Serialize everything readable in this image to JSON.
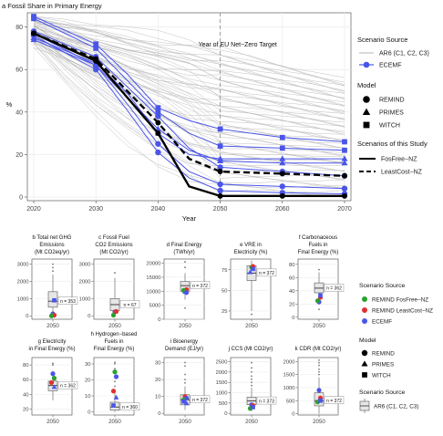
{
  "colors": {
    "ar6": "#b5b5b5",
    "ecemf": "#4a55e8",
    "remind_fosfree": "#2ca02c",
    "remind_leastcost": "#e03030",
    "black": "#000000",
    "panel_bg": "#ffffff",
    "grid": "#ebebeb"
  },
  "chart_data": [
    {
      "type": "line",
      "title": "a Fossil Share in Primary Energy",
      "xlabel": "Year",
      "ylabel": "%",
      "xlim": [
        2020,
        2070
      ],
      "ylim": [
        0,
        85
      ],
      "x_ticks": [
        2020,
        2030,
        2040,
        2050,
        2060,
        2070
      ],
      "y_ticks": [
        0,
        20,
        40,
        60,
        80
      ],
      "annotation": "Year of EU Net−Zero Target",
      "target_year": 2050,
      "grid": true,
      "legend_position": "right",
      "x": [
        2020,
        2030,
        2035,
        2040,
        2045,
        2050,
        2060,
        2070
      ],
      "series": [
        {
          "name": "FosFree−NZ",
          "model": "REMIND",
          "source": "study",
          "style": "solid",
          "values": [
            77,
            64,
            47,
            30,
            5,
            0.5,
            0.5,
            0.5
          ]
        },
        {
          "name": "LeastCost−NZ",
          "model": "REMIND",
          "source": "study",
          "style": "dashed",
          "values": [
            77,
            65,
            50,
            35,
            18,
            12,
            11,
            10
          ]
        },
        {
          "model": "REMIND",
          "source": "ECEMF",
          "values": [
            77,
            62,
            44,
            25,
            12,
            6,
            5,
            4
          ]
        },
        {
          "model": "REMIND",
          "source": "ECEMF",
          "values": [
            78,
            66,
            52,
            38,
            23,
            14,
            12,
            10
          ]
        },
        {
          "model": "REMIND",
          "source": "ECEMF",
          "values": [
            76,
            60,
            41,
            21,
            9,
            3,
            2,
            1.5
          ]
        },
        {
          "model": "PRIMES",
          "source": "ECEMF",
          "values": [
            74,
            62,
            47,
            32,
            22,
            17,
            16,
            16
          ]
        },
        {
          "model": "PRIMES",
          "source": "ECEMF",
          "values": [
            75,
            63,
            49,
            30,
            20,
            18,
            18,
            18
          ]
        },
        {
          "model": "WITCH",
          "source": "ECEMF",
          "values": [
            85,
            72,
            58,
            42,
            36,
            32,
            28,
            26
          ]
        },
        {
          "model": "WITCH",
          "source": "ECEMF",
          "values": [
            84,
            70,
            55,
            40,
            30,
            24,
            23,
            22
          ]
        }
      ],
      "ar6_envelope": {
        "source": "AR6 (C1, C2, C3)",
        "count": 58,
        "start": [
          72,
          85
        ],
        "end_2050": [
          3,
          70
        ],
        "end_2070": [
          1,
          55
        ]
      }
    },
    {
      "type": "box",
      "title_lines": [
        "b Total net GHG",
        "Emissions",
        "(Mt CO2eq/yr)"
      ],
      "xlabel": "2050",
      "y_ticks": [
        0,
        1000,
        2000,
        3000
      ],
      "ylim": [
        -200,
        3300
      ],
      "n_label": "n = 353",
      "box": {
        "min": 0,
        "q1": 500,
        "median": 850,
        "q3": 1400,
        "max": 2400
      },
      "outliers": [
        2600,
        2800,
        3000
      ],
      "points": [
        {
          "group": "ECEMF",
          "model": "REMIND",
          "value": 120
        },
        {
          "group": "REMIND LeastCost−NZ",
          "model": "REMIND",
          "value": 40
        },
        {
          "group": "REMIND FosFree−NZ",
          "model": "REMIND",
          "value": 0
        },
        {
          "group": "ECEMF",
          "model": "WITCH",
          "value": 900
        }
      ]
    },
    {
      "type": "box",
      "title_lines": [
        "c Fossil Fuel",
        "CO2 Emissions",
        "(Mt CO2/yr)"
      ],
      "xlabel": "2050",
      "y_ticks": [
        0,
        1000,
        2000,
        3000
      ],
      "ylim": [
        -200,
        3300
      ],
      "n_label": "n = 67",
      "box": {
        "min": 0,
        "q1": 300,
        "median": 650,
        "q3": 1000,
        "max": 2200
      },
      "outliers": [
        2500
      ],
      "points": [
        {
          "group": "ECEMF",
          "model": "REMIND",
          "value": 230
        },
        {
          "group": "REMIND LeastCost−NZ",
          "model": "REMIND",
          "value": 250
        },
        {
          "group": "REMIND FosFree−NZ",
          "model": "REMIND",
          "value": 40
        }
      ]
    },
    {
      "type": "box",
      "title_lines": [
        "d Final Energy",
        "(TWh/yr)"
      ],
      "xlabel": "2050",
      "y_ticks": [
        0,
        5000,
        10000,
        15000,
        20000
      ],
      "ylim": [
        0,
        21500
      ],
      "n_label": "n = 372",
      "box": {
        "min": 7000,
        "q1": 10000,
        "median": 12000,
        "q3": 13500,
        "max": 16500
      },
      "outliers": [
        18500,
        20500,
        4000
      ],
      "points": [
        {
          "group": "ECEMF",
          "model": "PRIMES",
          "value": 9800
        },
        {
          "group": "REMIND LeastCost−NZ",
          "model": "REMIND",
          "value": 10600
        },
        {
          "group": "REMIND FosFree−NZ",
          "model": "REMIND",
          "value": 10300
        },
        {
          "group": "ECEMF",
          "model": "REMIND",
          "value": 9500
        }
      ]
    },
    {
      "type": "box",
      "title_lines": [
        "e VRE in",
        "Electricity (%)"
      ],
      "xlabel": "2050",
      "y_ticks": [
        25,
        50,
        75
      ],
      "ylim": [
        15,
        88
      ],
      "n_label": "n = 372",
      "box": {
        "min": 25,
        "q1": 62,
        "median": 71,
        "q3": 80,
        "max": 86
      },
      "outliers": [
        21
      ],
      "points": [
        {
          "group": "REMIND FosFree−NZ",
          "model": "REMIND",
          "value": 78
        },
        {
          "group": "REMIND LeastCost−NZ",
          "model": "REMIND",
          "value": 79
        },
        {
          "group": "ECEMF",
          "model": "PRIMES",
          "value": 72
        },
        {
          "group": "ECEMF",
          "model": "WITCH",
          "value": 76
        }
      ]
    },
    {
      "type": "box",
      "title_lines": [
        "f Carbonaceous",
        "Fuels in",
        "Final Energy (%)"
      ],
      "xlabel": "2050",
      "y_ticks": [
        0,
        20,
        40,
        60,
        80
      ],
      "ylim": [
        -3,
        88
      ],
      "n_label": "n = 362",
      "box": {
        "min": 20,
        "q1": 37,
        "median": 44,
        "q3": 52,
        "max": 68
      },
      "outliers": [
        72,
        12
      ],
      "points": [
        {
          "group": "ECEMF",
          "model": "REMIND",
          "value": 23
        },
        {
          "group": "REMIND LeastCost−NZ",
          "model": "REMIND",
          "value": 30
        },
        {
          "group": "REMIND FosFree−NZ",
          "model": "REMIND",
          "value": 25
        },
        {
          "group": "ECEMF",
          "model": "WITCH",
          "value": 33
        }
      ]
    },
    {
      "type": "box",
      "title_lines": [
        "g Electricity",
        "in Final Energy (%)"
      ],
      "xlabel": "2050",
      "y_ticks": [
        20,
        40,
        60,
        80
      ],
      "ylim": [
        12,
        90
      ],
      "n_label": "n = 362",
      "box": {
        "min": 32,
        "q1": 45,
        "median": 52,
        "q3": 58,
        "max": 72
      },
      "outliers": [
        80,
        82
      ],
      "points": [
        {
          "group": "ECEMF",
          "model": "REMIND",
          "value": 68
        },
        {
          "group": "REMIND FosFree−NZ",
          "model": "REMIND",
          "value": 62
        },
        {
          "group": "REMIND LeastCost−NZ",
          "model": "REMIND",
          "value": 56
        },
        {
          "group": "ECEMF",
          "model": "PRIMES",
          "value": 50
        }
      ]
    },
    {
      "type": "box",
      "title_lines": [
        "h Hydrogen−based",
        "Fuels in",
        "Final Energy (%)"
      ],
      "xlabel": "2050",
      "y_ticks": [
        0,
        10,
        20,
        30
      ],
      "ylim": [
        -2,
        34
      ],
      "n_label": "n = 360",
      "box": {
        "min": 0,
        "q1": 1,
        "median": 3,
        "q3": 6,
        "max": 14
      },
      "outliers": [
        16,
        19,
        22,
        27,
        30,
        31
      ],
      "points": [
        {
          "group": "REMIND FosFree−NZ",
          "model": "REMIND",
          "value": 25
        },
        {
          "group": "ECEMF",
          "model": "REMIND",
          "value": 22
        },
        {
          "group": "REMIND LeastCost−NZ",
          "model": "REMIND",
          "value": 13
        },
        {
          "group": "ECEMF",
          "model": "PRIMES",
          "value": 9
        },
        {
          "group": "ECEMF",
          "model": "WITCH",
          "value": 4
        }
      ]
    },
    {
      "type": "box",
      "title_lines": [
        "i Bioenergy",
        "Demand (EJ/yr)"
      ],
      "xlabel": "2050",
      "y_ticks": [
        0,
        10,
        20,
        30
      ],
      "ylim": [
        -1,
        33
      ],
      "n_label": "n = 372",
      "box": {
        "min": 2,
        "q1": 5,
        "median": 8,
        "q3": 11,
        "max": 16
      },
      "outliers": [
        18,
        20,
        23,
        28,
        30
      ],
      "points": [
        {
          "group": "REMIND LeastCost−NZ",
          "model": "REMIND",
          "value": 10
        },
        {
          "group": "ECEMF",
          "model": "REMIND",
          "value": 9
        },
        {
          "group": "REMIND FosFree−NZ",
          "model": "REMIND",
          "value": 8
        },
        {
          "group": "ECEMF",
          "model": "PRIMES",
          "value": 6
        },
        {
          "group": "ECEMF",
          "model": "WITCH",
          "value": 7
        }
      ]
    },
    {
      "type": "box",
      "title_lines": [
        "j CCS (Mt CO2/yr)"
      ],
      "xlabel": "2050",
      "y_ticks": [
        0,
        500,
        1000,
        1500,
        2000,
        2500
      ],
      "ylim": [
        -80,
        2700
      ],
      "n_label": "n = 373",
      "box": {
        "min": 100,
        "q1": 420,
        "median": 600,
        "q3": 780,
        "max": 1250
      },
      "outliers": [
        1350,
        1500,
        1650,
        1800,
        2000,
        2200,
        2450
      ],
      "points": [
        {
          "group": "ECEMF",
          "model": "REMIND",
          "value": 420
        },
        {
          "group": "REMIND LeastCost−NZ",
          "model": "REMIND",
          "value": 380
        },
        {
          "group": "REMIND FosFree−NZ",
          "model": "REMIND",
          "value": 240
        },
        {
          "group": "ECEMF",
          "model": "WITCH",
          "value": 300
        }
      ]
    },
    {
      "type": "box",
      "title_lines": [
        "k CDR (Mt CO2/yr)"
      ],
      "xlabel": "2050",
      "y_ticks": [
        0,
        500,
        1000,
        1500,
        2000
      ],
      "ylim": [
        -50,
        2150
      ],
      "n_label": "n = 372",
      "box": {
        "min": 0,
        "q1": 300,
        "median": 500,
        "q3": 800,
        "max": 1400
      },
      "outliers": [
        1500,
        1600,
        1700,
        1850,
        1950,
        2050
      ],
      "points": [
        {
          "group": "ECEMF",
          "model": "REMIND",
          "value": 900
        },
        {
          "group": "REMIND LeastCost−NZ",
          "model": "REMIND",
          "value": 600
        },
        {
          "group": "REMIND FosFree−NZ",
          "model": "REMIND",
          "value": 450
        },
        {
          "group": "ECEMF",
          "model": "WITCH",
          "value": 500
        }
      ]
    }
  ],
  "legend_top": {
    "scenario_source_title": "Scenario Source",
    "ar6_label": "AR6 (C1, C2, C3)",
    "ecemf_label": "ECEMF",
    "model_title": "Model",
    "models": [
      "REMIND",
      "PRIMES",
      "WITCH"
    ],
    "study_title": "Scenarios of this Study",
    "study_scenarios": [
      "FosFree−NZ",
      "LeastCost−NZ"
    ]
  },
  "legend_bottom": {
    "scenario_source_title": "Scenario Source",
    "scenario_sources": [
      "REMIND FosFree−NZ",
      "REMIND LeastCost−NZ",
      "ECEMF"
    ],
    "model_title": "Model",
    "models": [
      "REMIND",
      "PRIMES",
      "WITCH"
    ],
    "box_title": "Scenario Source",
    "box_label": "AR6 (C1, C2, C3)"
  }
}
